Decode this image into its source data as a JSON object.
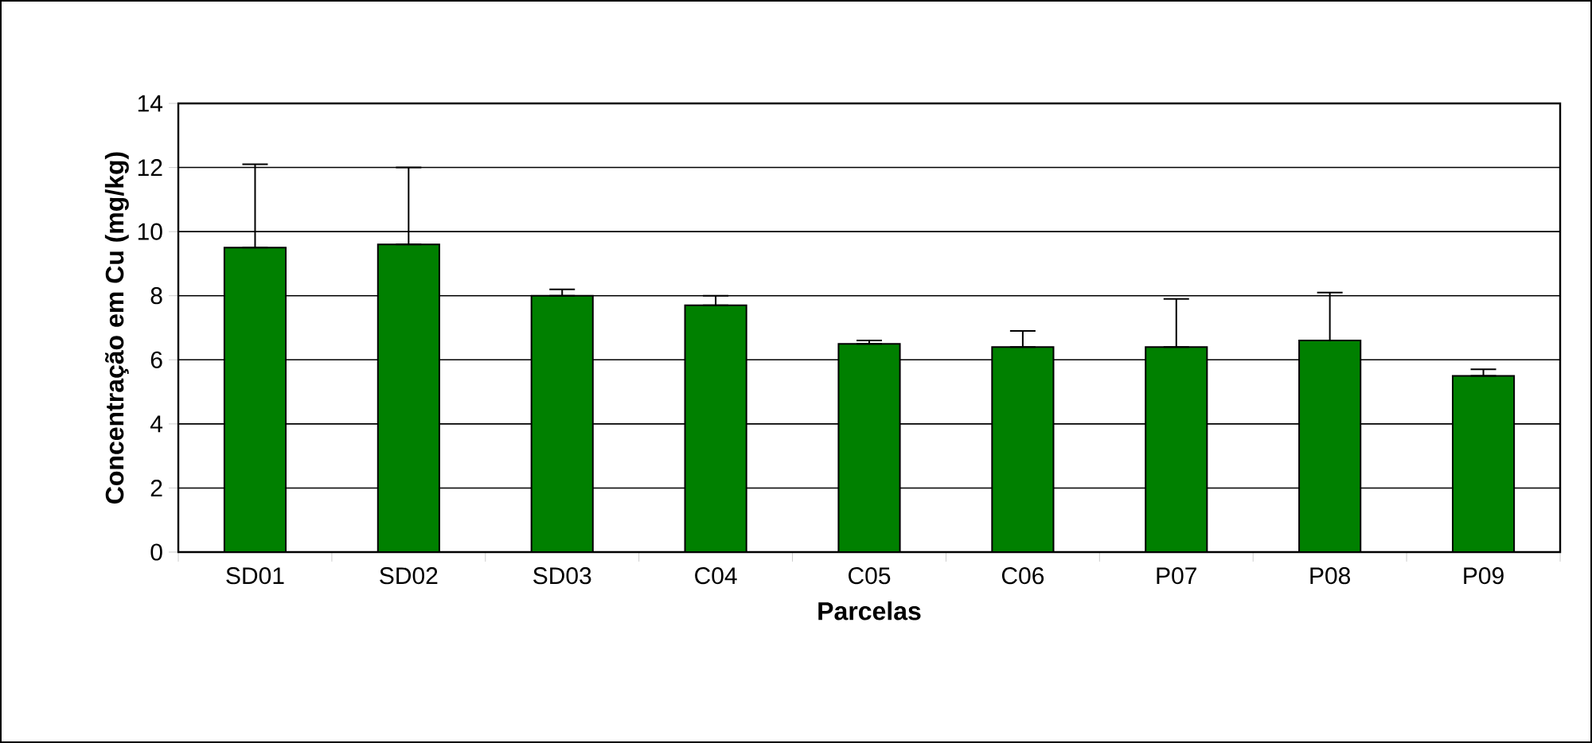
{
  "chart_data": {
    "type": "bar",
    "xlabel": "Parcelas",
    "ylabel": "Concentração em Cu (mg/kg)",
    "categories": [
      "SD01",
      "SD02",
      "SD03",
      "C04",
      "C05",
      "C06",
      "P07",
      "P08",
      "P09"
    ],
    "values": [
      9.5,
      9.6,
      8.0,
      7.7,
      6.5,
      6.4,
      6.4,
      6.6,
      5.5
    ],
    "errors": [
      [
        9.5,
        12.1
      ],
      [
        9.6,
        12.0
      ],
      [
        8.0,
        8.2
      ],
      [
        7.7,
        8.0
      ],
      [
        6.5,
        6.6
      ],
      [
        6.4,
        6.9
      ],
      [
        6.4,
        7.9
      ],
      [
        6.6,
        8.1
      ],
      [
        5.5,
        5.7
      ]
    ],
    "color": "#008000",
    "ylim": [
      0,
      14
    ],
    "yticks": [
      0,
      2,
      4,
      6,
      8,
      10,
      12,
      14
    ],
    "grid": "y"
  }
}
